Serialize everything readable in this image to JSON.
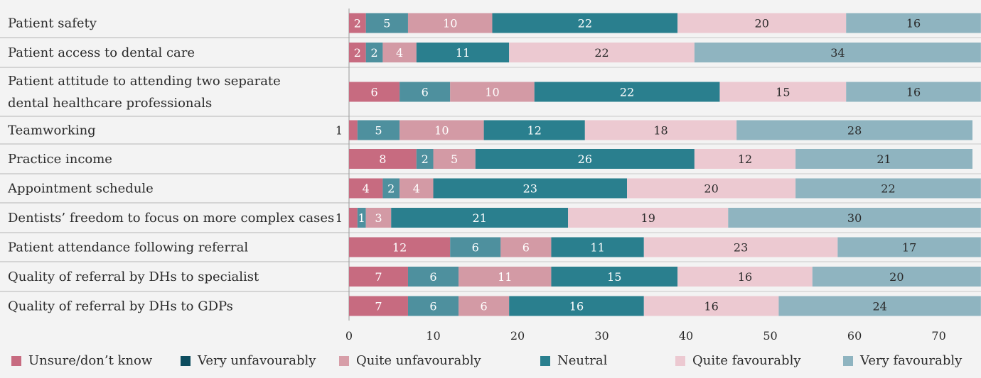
{
  "chart_data": {
    "type": "bar",
    "orientation": "horizontal",
    "stacked": true,
    "categories": [
      "Patient safety",
      "Patient access to dental care",
      [
        "Patient attitude to attending two separate",
        "dental healthcare professionals"
      ],
      "Teamworking",
      "Practice income",
      "Appointment schedule",
      "Dentists’ freedom to focus on more complex cases",
      "Patient attendance following referral",
      "Quality of referral by DHs to specialist",
      "Quality of referral by DHs to GDPs"
    ],
    "series": [
      {
        "name": "Unsure/don’t know",
        "color": "#c76b80",
        "values": [
          2,
          2,
          6,
          1,
          8,
          4,
          1,
          12,
          7,
          7
        ]
      },
      {
        "name": "Very unfavourably",
        "color": "#0d4d5f",
        "values": [
          0,
          0,
          0,
          0,
          0,
          0,
          0,
          0,
          0,
          0
        ]
      },
      {
        "name": "Quite unfavourably",
        "color": "#d79ea8",
        "values": [
          0,
          0,
          0,
          0,
          0,
          0,
          0,
          0,
          0,
          0
        ]
      },
      {
        "name": "Neutral",
        "color": "#2a7f8e",
        "values": [
          0,
          0,
          0,
          0,
          0,
          0,
          0,
          0,
          0,
          0
        ]
      },
      {
        "name": "Quite favourably",
        "color": "#ecc9d1",
        "values": [
          0,
          0,
          0,
          0,
          0,
          0,
          0,
          0,
          0,
          0
        ]
      },
      {
        "name": "Very favourably",
        "color": "#8fb4c0",
        "values": [
          0,
          0,
          0,
          0,
          0,
          0,
          0,
          0,
          0,
          0
        ]
      }
    ],
    "segments": [
      [
        2,
        5,
        10,
        22,
        20,
        16
      ],
      [
        2,
        2,
        4,
        11,
        22,
        34
      ],
      [
        6,
        6,
        10,
        22,
        15,
        16
      ],
      [
        1,
        5,
        10,
        12,
        18,
        28
      ],
      [
        8,
        2,
        5,
        26,
        12,
        21
      ],
      [
        4,
        2,
        4,
        23,
        20,
        22
      ],
      [
        1,
        1,
        3,
        21,
        19,
        30
      ],
      [
        12,
        6,
        6,
        11,
        23,
        17
      ],
      [
        7,
        6,
        11,
        15,
        16,
        20
      ],
      [
        7,
        6,
        6,
        16,
        16,
        24
      ]
    ],
    "segment_colors": [
      "#c76b80",
      "#4e909e",
      "#d39aa5",
      "#2a7f8e",
      "#ecc9d1",
      "#8fb4c0"
    ],
    "segment_text_colors": [
      "#ffffff",
      "#ffffff",
      "#ffffff",
      "#ffffff",
      "#2b2b2b",
      "#2b2b2b"
    ],
    "outside_labels": [
      false,
      false,
      false,
      true,
      false,
      false,
      true,
      false,
      false,
      false
    ],
    "xlim": [
      0,
      74
    ],
    "xticks": [
      0,
      10,
      20,
      30,
      40,
      50,
      60,
      70
    ],
    "legend_position": "bottom",
    "grid": false
  },
  "legend": [
    {
      "name": "Unsure/don’t know",
      "color": "#c76b80"
    },
    {
      "name": "Very unfavourably",
      "color": "#0d4d5f"
    },
    {
      "name": "Quite unfavourably",
      "color": "#d79ea8"
    },
    {
      "name": "Neutral",
      "color": "#2a7f8e"
    },
    {
      "name": "Quite favourably",
      "color": "#ecc9d1"
    },
    {
      "name": "Very favourably",
      "color": "#8fb4c0"
    }
  ]
}
